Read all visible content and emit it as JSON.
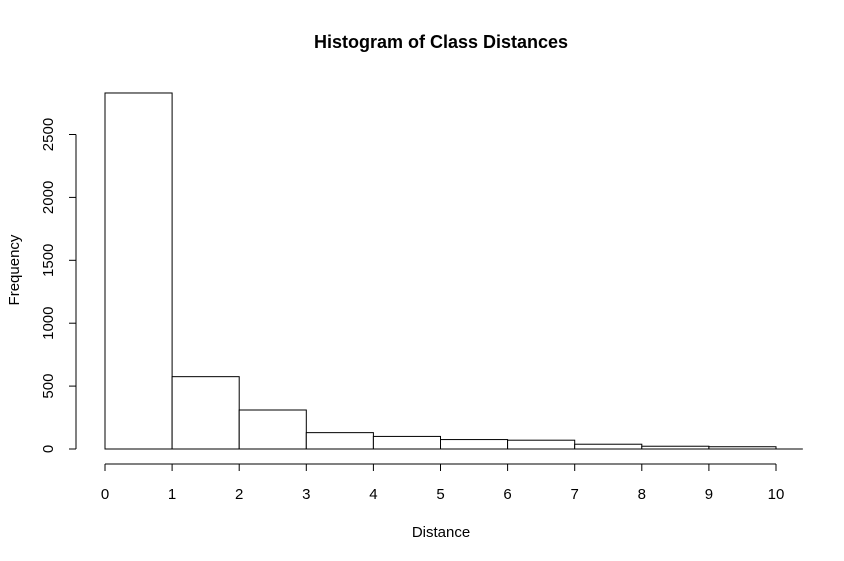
{
  "chart_data": {
    "type": "bar",
    "title": "Histogram of Class Distances",
    "xlabel": "Distance",
    "ylabel": "Frequency",
    "bins": [
      {
        "from": 0,
        "to": 1,
        "count": 2830
      },
      {
        "from": 1,
        "to": 2,
        "count": 575
      },
      {
        "from": 2,
        "to": 3,
        "count": 310
      },
      {
        "from": 3,
        "to": 4,
        "count": 130
      },
      {
        "from": 4,
        "to": 5,
        "count": 100
      },
      {
        "from": 5,
        "to": 6,
        "count": 75
      },
      {
        "from": 6,
        "to": 7,
        "count": 70
      },
      {
        "from": 7,
        "to": 8,
        "count": 38
      },
      {
        "from": 8,
        "to": 9,
        "count": 22
      },
      {
        "from": 9,
        "to": 10,
        "count": 18
      }
    ],
    "x_ticks": [
      "0",
      "1",
      "2",
      "3",
      "4",
      "5",
      "6",
      "7",
      "8",
      "9",
      "10"
    ],
    "y_ticks": [
      "0",
      "500",
      "1000",
      "1500",
      "2000",
      "2500"
    ],
    "xlim": [
      0,
      10.4
    ],
    "ylim": [
      0,
      2830
    ],
    "grid": false,
    "bar_fill": "#ffffff",
    "bar_stroke": "#000000"
  }
}
